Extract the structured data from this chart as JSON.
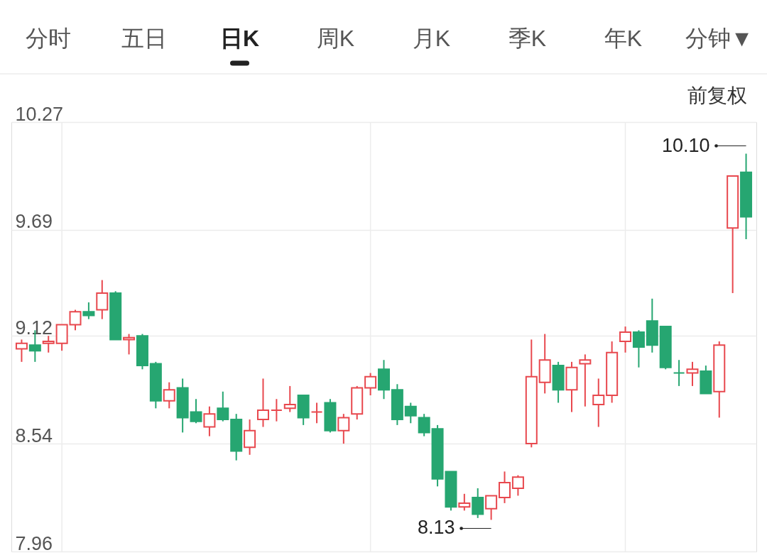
{
  "chart_data": {
    "type": "candlestick",
    "categories": [
      null,
      null,
      null,
      null,
      null,
      null,
      null,
      null,
      null,
      null,
      null,
      null,
      null,
      null,
      null,
      null,
      null,
      null,
      null,
      null,
      null,
      null,
      null,
      null,
      null,
      null,
      null,
      null,
      null,
      null,
      null,
      null,
      null,
      null,
      null,
      null,
      null,
      null,
      null,
      null,
      null,
      null,
      null,
      null,
      null,
      null,
      null,
      null,
      null,
      null,
      null,
      null,
      null,
      null,
      null
    ],
    "ohlc": [
      [
        9.05,
        9.1,
        8.98,
        9.08
      ],
      [
        9.07,
        9.15,
        8.98,
        9.04
      ],
      [
        9.08,
        9.12,
        9.03,
        9.09
      ],
      [
        9.08,
        9.18,
        9.04,
        9.18
      ],
      [
        9.18,
        9.26,
        9.15,
        9.25
      ],
      [
        9.25,
        9.3,
        9.21,
        9.23
      ],
      [
        9.26,
        9.42,
        9.21,
        9.35
      ],
      [
        9.35,
        9.36,
        9.1,
        9.1
      ],
      [
        9.1,
        9.13,
        9.02,
        9.11
      ],
      [
        9.12,
        9.13,
        8.94,
        8.96
      ],
      [
        8.97,
        8.98,
        8.73,
        8.77
      ],
      [
        8.77,
        8.87,
        8.73,
        8.83
      ],
      [
        8.84,
        8.89,
        8.6,
        8.68
      ],
      [
        8.71,
        8.78,
        8.65,
        8.66
      ],
      [
        8.63,
        8.74,
        8.58,
        8.7
      ],
      [
        8.73,
        8.82,
        8.66,
        8.67
      ],
      [
        8.67,
        8.7,
        8.45,
        8.5
      ],
      [
        8.52,
        8.67,
        8.48,
        8.61
      ],
      [
        8.67,
        8.89,
        8.63,
        8.72
      ],
      [
        8.72,
        8.78,
        8.66,
        8.72
      ],
      [
        8.73,
        8.85,
        8.71,
        8.75
      ],
      [
        8.8,
        8.8,
        8.64,
        8.68
      ],
      [
        8.71,
        8.76,
        8.65,
        8.71
      ],
      [
        8.76,
        8.78,
        8.6,
        8.61
      ],
      [
        8.61,
        8.7,
        8.54,
        8.68
      ],
      [
        8.7,
        8.85,
        8.67,
        8.84
      ],
      [
        8.84,
        8.92,
        8.8,
        8.9
      ],
      [
        8.94,
        8.99,
        8.78,
        8.83
      ],
      [
        8.83,
        8.86,
        8.64,
        8.67
      ],
      [
        8.74,
        8.76,
        8.65,
        8.69
      ],
      [
        8.68,
        8.7,
        8.58,
        8.6
      ],
      [
        8.62,
        8.64,
        8.31,
        8.35
      ],
      [
        8.39,
        8.39,
        8.18,
        8.2
      ],
      [
        8.2,
        8.27,
        8.18,
        8.22
      ],
      [
        8.25,
        8.3,
        8.14,
        8.16
      ],
      [
        8.19,
        8.26,
        8.13,
        8.26
      ],
      [
        8.25,
        8.39,
        8.22,
        8.33
      ],
      [
        8.3,
        8.37,
        8.26,
        8.36
      ],
      [
        8.54,
        9.1,
        8.52,
        8.9
      ],
      [
        8.87,
        9.13,
        8.81,
        8.99
      ],
      [
        8.96,
        8.98,
        8.76,
        8.83
      ],
      [
        8.83,
        8.98,
        8.71,
        8.95
      ],
      [
        8.97,
        9.02,
        8.74,
        8.99
      ],
      [
        8.75,
        8.89,
        8.63,
        8.8
      ],
      [
        8.8,
        9.09,
        8.76,
        9.03
      ],
      [
        9.09,
        9.17,
        9.03,
        9.14
      ],
      [
        9.14,
        9.15,
        8.95,
        9.06
      ],
      [
        9.2,
        9.32,
        9.03,
        9.07
      ],
      [
        9.17,
        9.17,
        8.94,
        8.95
      ],
      [
        8.92,
        8.99,
        8.85,
        8.92
      ],
      [
        8.92,
        8.98,
        8.85,
        8.94
      ],
      [
        8.93,
        8.96,
        8.81,
        8.81
      ],
      [
        8.82,
        9.09,
        8.68,
        9.07
      ],
      [
        9.7,
        9.98,
        9.35,
        9.98
      ],
      [
        10.0,
        10.1,
        9.64,
        9.76
      ]
    ],
    "colors": [
      "#e8484e",
      "#26a671",
      "#e8484e",
      "#e8484e",
      "#e8484e",
      "#26a671",
      "#e8484e",
      "#26a671",
      "#e8484e",
      "#26a671",
      "#26a671",
      "#e8484e",
      "#26a671",
      "#26a671",
      "#e8484e",
      "#26a671",
      "#26a671",
      "#e8484e",
      "#e8484e",
      "#e8484e",
      "#e8484e",
      "#26a671",
      "#e8484e",
      "#26a671",
      "#e8484e",
      "#e8484e",
      "#e8484e",
      "#26a671",
      "#26a671",
      "#26a671",
      "#26a671",
      "#26a671",
      "#26a671",
      "#e8484e",
      "#26a671",
      "#e8484e",
      "#e8484e",
      "#e8484e",
      "#e8484e",
      "#e8484e",
      "#26a671",
      "#e8484e",
      "#e8484e",
      "#e8484e",
      "#e8484e",
      "#e8484e",
      "#26a671",
      "#26a671",
      "#26a671",
      "#26a671",
      "#e8484e",
      "#26a671",
      "#e8484e",
      "#e8484e",
      "#26a671"
    ],
    "ylim": [
      7.96,
      10.27
    ],
    "yticks": [
      7.96,
      8.54,
      9.12,
      9.69,
      10.27
    ],
    "grid": true,
    "tick_labels": "y",
    "annotations": [
      "分时",
      "五日",
      "日K",
      "周K",
      "月K",
      "季K",
      "年K",
      "分钟▼",
      "前复权",
      "10.10",
      "8.13"
    ]
  }
}
